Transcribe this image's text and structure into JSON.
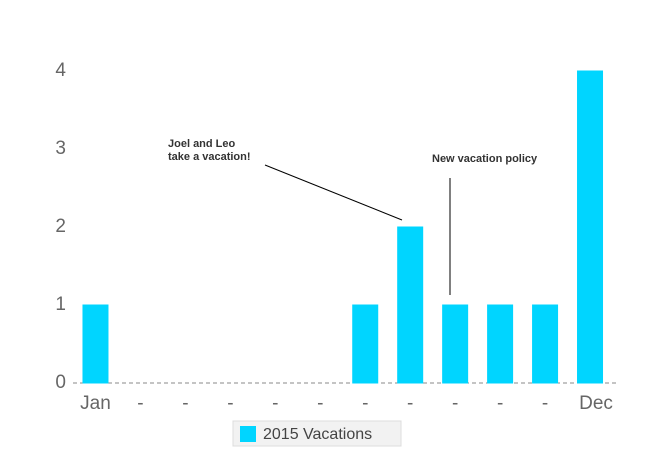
{
  "chart_data": {
    "type": "bar",
    "categories": [
      "Jan",
      "-",
      "-",
      "-",
      "-",
      "-",
      "-",
      "-",
      "-",
      "-",
      "-",
      "Dec"
    ],
    "series": [
      {
        "name": "2015 Vacations",
        "color": "#00d5ff",
        "values": [
          1,
          0,
          0,
          0,
          0,
          0,
          1,
          2,
          1,
          1,
          1,
          4
        ]
      }
    ],
    "ylim": [
      0,
      4
    ],
    "yticks": [
      0,
      1,
      2,
      3,
      4
    ],
    "grid": false,
    "annotations": [
      {
        "lines": [
          "Joel and Leo",
          "take a vacation!"
        ]
      },
      {
        "lines": [
          "New vacation policy"
        ]
      }
    ],
    "legend": "bottom"
  }
}
